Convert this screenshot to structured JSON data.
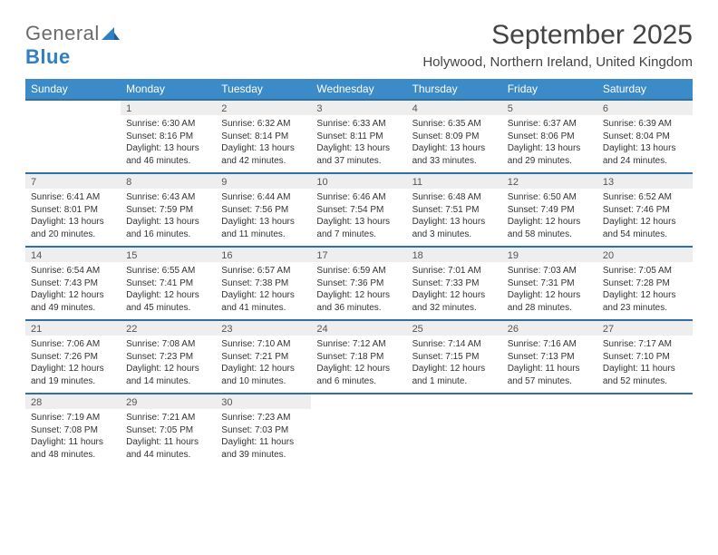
{
  "logo": {
    "text_general": "General",
    "text_blue": "Blue"
  },
  "title": "September 2025",
  "location": "Holywood, Northern Ireland, United Kingdom",
  "colors": {
    "header_bg": "#3b8bc8",
    "header_text": "#ffffff",
    "row_border": "#2f6fa3",
    "daynum_bg": "#eeeeee",
    "text": "#333333",
    "logo_blue": "#2f7fc2",
    "logo_gray": "#6b6b6b"
  },
  "day_headers": [
    "Sunday",
    "Monday",
    "Tuesday",
    "Wednesday",
    "Thursday",
    "Friday",
    "Saturday"
  ],
  "weeks": [
    [
      null,
      {
        "num": "1",
        "sunrise": "Sunrise: 6:30 AM",
        "sunset": "Sunset: 8:16 PM",
        "daylight": "Daylight: 13 hours and 46 minutes."
      },
      {
        "num": "2",
        "sunrise": "Sunrise: 6:32 AM",
        "sunset": "Sunset: 8:14 PM",
        "daylight": "Daylight: 13 hours and 42 minutes."
      },
      {
        "num": "3",
        "sunrise": "Sunrise: 6:33 AM",
        "sunset": "Sunset: 8:11 PM",
        "daylight": "Daylight: 13 hours and 37 minutes."
      },
      {
        "num": "4",
        "sunrise": "Sunrise: 6:35 AM",
        "sunset": "Sunset: 8:09 PM",
        "daylight": "Daylight: 13 hours and 33 minutes."
      },
      {
        "num": "5",
        "sunrise": "Sunrise: 6:37 AM",
        "sunset": "Sunset: 8:06 PM",
        "daylight": "Daylight: 13 hours and 29 minutes."
      },
      {
        "num": "6",
        "sunrise": "Sunrise: 6:39 AM",
        "sunset": "Sunset: 8:04 PM",
        "daylight": "Daylight: 13 hours and 24 minutes."
      }
    ],
    [
      {
        "num": "7",
        "sunrise": "Sunrise: 6:41 AM",
        "sunset": "Sunset: 8:01 PM",
        "daylight": "Daylight: 13 hours and 20 minutes."
      },
      {
        "num": "8",
        "sunrise": "Sunrise: 6:43 AM",
        "sunset": "Sunset: 7:59 PM",
        "daylight": "Daylight: 13 hours and 16 minutes."
      },
      {
        "num": "9",
        "sunrise": "Sunrise: 6:44 AM",
        "sunset": "Sunset: 7:56 PM",
        "daylight": "Daylight: 13 hours and 11 minutes."
      },
      {
        "num": "10",
        "sunrise": "Sunrise: 6:46 AM",
        "sunset": "Sunset: 7:54 PM",
        "daylight": "Daylight: 13 hours and 7 minutes."
      },
      {
        "num": "11",
        "sunrise": "Sunrise: 6:48 AM",
        "sunset": "Sunset: 7:51 PM",
        "daylight": "Daylight: 13 hours and 3 minutes."
      },
      {
        "num": "12",
        "sunrise": "Sunrise: 6:50 AM",
        "sunset": "Sunset: 7:49 PM",
        "daylight": "Daylight: 12 hours and 58 minutes."
      },
      {
        "num": "13",
        "sunrise": "Sunrise: 6:52 AM",
        "sunset": "Sunset: 7:46 PM",
        "daylight": "Daylight: 12 hours and 54 minutes."
      }
    ],
    [
      {
        "num": "14",
        "sunrise": "Sunrise: 6:54 AM",
        "sunset": "Sunset: 7:43 PM",
        "daylight": "Daylight: 12 hours and 49 minutes."
      },
      {
        "num": "15",
        "sunrise": "Sunrise: 6:55 AM",
        "sunset": "Sunset: 7:41 PM",
        "daylight": "Daylight: 12 hours and 45 minutes."
      },
      {
        "num": "16",
        "sunrise": "Sunrise: 6:57 AM",
        "sunset": "Sunset: 7:38 PM",
        "daylight": "Daylight: 12 hours and 41 minutes."
      },
      {
        "num": "17",
        "sunrise": "Sunrise: 6:59 AM",
        "sunset": "Sunset: 7:36 PM",
        "daylight": "Daylight: 12 hours and 36 minutes."
      },
      {
        "num": "18",
        "sunrise": "Sunrise: 7:01 AM",
        "sunset": "Sunset: 7:33 PM",
        "daylight": "Daylight: 12 hours and 32 minutes."
      },
      {
        "num": "19",
        "sunrise": "Sunrise: 7:03 AM",
        "sunset": "Sunset: 7:31 PM",
        "daylight": "Daylight: 12 hours and 28 minutes."
      },
      {
        "num": "20",
        "sunrise": "Sunrise: 7:05 AM",
        "sunset": "Sunset: 7:28 PM",
        "daylight": "Daylight: 12 hours and 23 minutes."
      }
    ],
    [
      {
        "num": "21",
        "sunrise": "Sunrise: 7:06 AM",
        "sunset": "Sunset: 7:26 PM",
        "daylight": "Daylight: 12 hours and 19 minutes."
      },
      {
        "num": "22",
        "sunrise": "Sunrise: 7:08 AM",
        "sunset": "Sunset: 7:23 PM",
        "daylight": "Daylight: 12 hours and 14 minutes."
      },
      {
        "num": "23",
        "sunrise": "Sunrise: 7:10 AM",
        "sunset": "Sunset: 7:21 PM",
        "daylight": "Daylight: 12 hours and 10 minutes."
      },
      {
        "num": "24",
        "sunrise": "Sunrise: 7:12 AM",
        "sunset": "Sunset: 7:18 PM",
        "daylight": "Daylight: 12 hours and 6 minutes."
      },
      {
        "num": "25",
        "sunrise": "Sunrise: 7:14 AM",
        "sunset": "Sunset: 7:15 PM",
        "daylight": "Daylight: 12 hours and 1 minute."
      },
      {
        "num": "26",
        "sunrise": "Sunrise: 7:16 AM",
        "sunset": "Sunset: 7:13 PM",
        "daylight": "Daylight: 11 hours and 57 minutes."
      },
      {
        "num": "27",
        "sunrise": "Sunrise: 7:17 AM",
        "sunset": "Sunset: 7:10 PM",
        "daylight": "Daylight: 11 hours and 52 minutes."
      }
    ],
    [
      {
        "num": "28",
        "sunrise": "Sunrise: 7:19 AM",
        "sunset": "Sunset: 7:08 PM",
        "daylight": "Daylight: 11 hours and 48 minutes."
      },
      {
        "num": "29",
        "sunrise": "Sunrise: 7:21 AM",
        "sunset": "Sunset: 7:05 PM",
        "daylight": "Daylight: 11 hours and 44 minutes."
      },
      {
        "num": "30",
        "sunrise": "Sunrise: 7:23 AM",
        "sunset": "Sunset: 7:03 PM",
        "daylight": "Daylight: 11 hours and 39 minutes."
      },
      null,
      null,
      null,
      null
    ]
  ]
}
